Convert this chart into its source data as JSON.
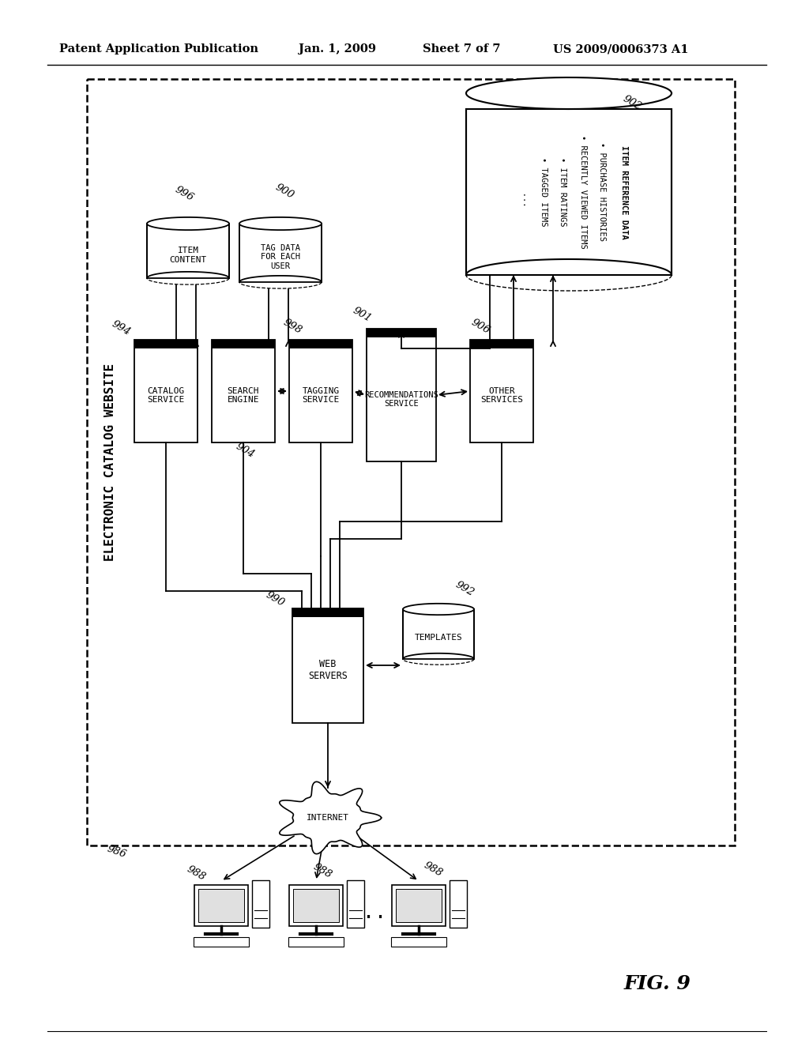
{
  "bg_color": "#ffffff",
  "header_left": "Patent Application Publication",
  "header_mid1": "Jan. 1, 2009",
  "header_mid2": "Sheet 7 of 7",
  "header_right": "US 2009/0006373 A1",
  "fig_label": "FIG. 9",
  "outer_label": "ELECTRONIC CATALOG WEBSITE",
  "label_catalog": "CATALOG\nSERVICE",
  "label_search": "SEARCH\nENGINE",
  "label_tagging": "TAGGING\nSERVICE",
  "label_recom": "RECOMMENDATIONS\nSERVICE",
  "label_other": "OTHER\nSERVICES",
  "label_web": "WEB\nSERVERS",
  "label_item_content": "ITEM\nCONTENT",
  "label_tag_data": "TAG DATA\nFOR EACH\nUSER",
  "label_templates": "TEMPLATES",
  "label_internet": "INTERNET",
  "ref_902": "902",
  "ref_996": "996",
  "ref_900": "900",
  "ref_994": "994",
  "ref_904": "904",
  "ref_998": "998",
  "ref_901": "901",
  "ref_906": "906",
  "ref_990": "990",
  "ref_992": "992",
  "ref_986": "986",
  "ref_988a": "988",
  "ref_988b": "988",
  "ref_988c": "988"
}
